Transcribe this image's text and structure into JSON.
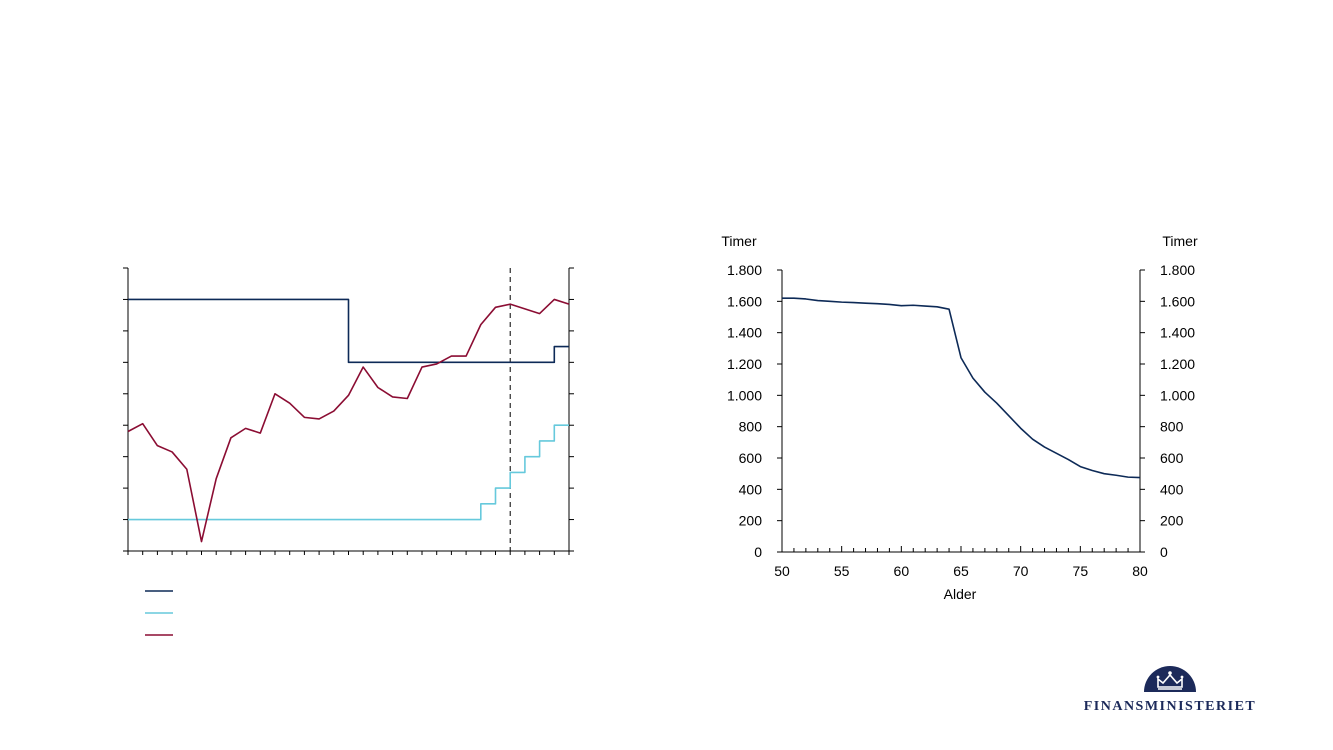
{
  "colors": {
    "dark_navy": "#0d2a57",
    "light_blue": "#66c9dc",
    "crimson": "#8b0d33",
    "axis": "#000000"
  },
  "logo": {
    "name": "Finansministeriet"
  },
  "chart_data": [
    {
      "type": "line",
      "title": "",
      "xlabel": "",
      "ylabel": "",
      "x_count": 31,
      "ylim": [
        0,
        9
      ],
      "vertical_marker_x": 26,
      "grid": false,
      "series": [
        {
          "name": "",
          "color": "#0d2a57",
          "step": true,
          "values": [
            8,
            8,
            8,
            8,
            8,
            8,
            8,
            8,
            8,
            8,
            8,
            8,
            8,
            8,
            8,
            6,
            6,
            6,
            6,
            6,
            6,
            6,
            6,
            6,
            6,
            6,
            6,
            6,
            6,
            6.5,
            6.5
          ]
        },
        {
          "name": "",
          "color": "#66c9dc",
          "step": true,
          "values": [
            1,
            1,
            1,
            1,
            1,
            1,
            1,
            1,
            1,
            1,
            1,
            1,
            1,
            1,
            1,
            1,
            1,
            1,
            1,
            1,
            1,
            1,
            1,
            1,
            1.5,
            2,
            2.5,
            3,
            3.5,
            4,
            4
          ]
        },
        {
          "name": "",
          "color": "#8b0d33",
          "step": false,
          "values": [
            3.8,
            4.05,
            3.35,
            3.15,
            2.6,
            0.3,
            2.3,
            3.6,
            3.9,
            3.75,
            5.0,
            4.7,
            4.25,
            4.2,
            4.45,
            4.95,
            5.85,
            5.2,
            4.9,
            4.85,
            5.85,
            5.95,
            6.2,
            6.2,
            7.2,
            7.75,
            7.85,
            7.7,
            7.55,
            8.0,
            7.85
          ]
        }
      ]
    },
    {
      "type": "line",
      "title": "",
      "xlabel": "Alder",
      "ylabel": "Timer",
      "ylabel_right": "Timer",
      "xlim": [
        50,
        80
      ],
      "ylim": [
        0,
        1800
      ],
      "x_ticks": [
        50,
        55,
        60,
        65,
        70,
        75,
        80
      ],
      "x_tick_labels": [
        "50",
        "55",
        "60",
        "65",
        "70",
        "75",
        "80"
      ],
      "y_ticks": [
        0,
        200,
        400,
        600,
        800,
        1000,
        1200,
        1400,
        1600,
        1800
      ],
      "y_tick_labels": [
        "0",
        "200",
        "400",
        "600",
        "800",
        "1.000",
        "1.200",
        "1.400",
        "1.600",
        "1.800"
      ],
      "grid": false,
      "series": [
        {
          "name": "",
          "color": "#0d2a57",
          "x": [
            50,
            51,
            52,
            53,
            54,
            55,
            56,
            57,
            58,
            59,
            60,
            61,
            62,
            63,
            64,
            65,
            66,
            67,
            68,
            69,
            70,
            71,
            72,
            73,
            74,
            75,
            76,
            77,
            78,
            79,
            80
          ],
          "values": [
            1620,
            1620,
            1615,
            1605,
            1600,
            1595,
            1592,
            1588,
            1585,
            1580,
            1572,
            1575,
            1570,
            1565,
            1550,
            1240,
            1110,
            1020,
            950,
            870,
            790,
            720,
            670,
            630,
            590,
            545,
            520,
            500,
            490,
            478,
            475
          ]
        }
      ]
    }
  ]
}
